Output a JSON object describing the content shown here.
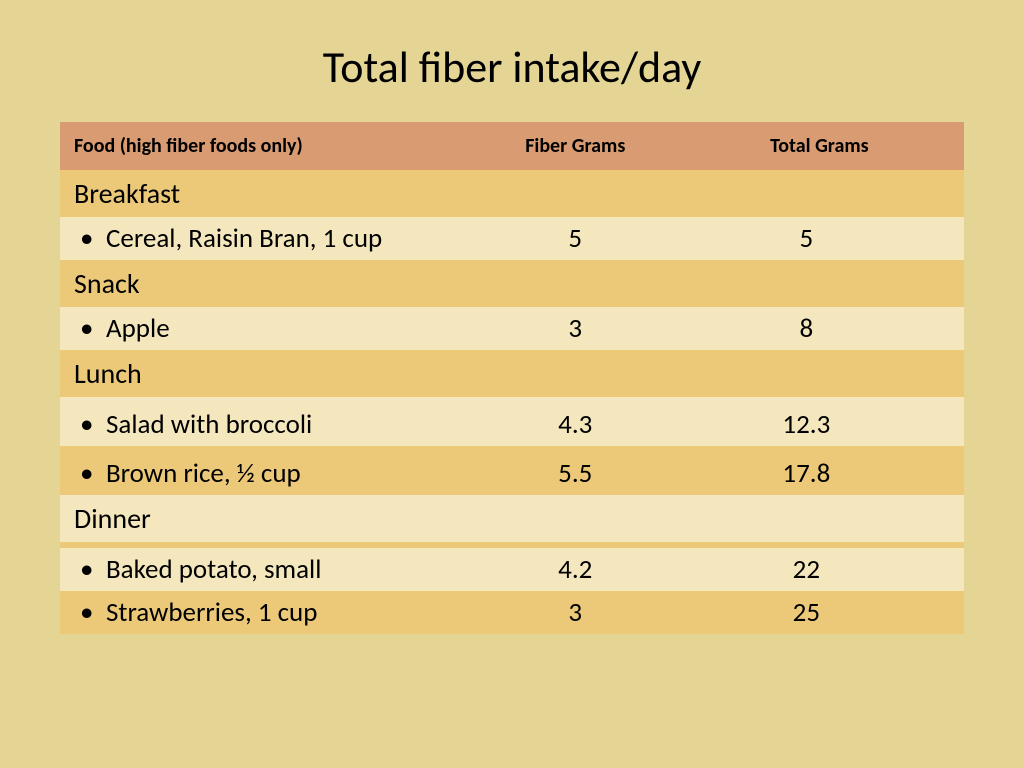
{
  "colors": {
    "slide_bg": "#e4d594",
    "header_bg": "#d89b72",
    "band_dark": "#ebc978",
    "band_light": "#f4e7be",
    "text": "#000000"
  },
  "title": "Total fiber intake/day",
  "columns": {
    "food": "Food (high fiber foods only)",
    "fiber": "Fiber Grams",
    "total": "Total Grams"
  },
  "rows": [
    {
      "type": "section",
      "label": "Breakfast",
      "band": "dark"
    },
    {
      "type": "item",
      "food": "Cereal, Raisin Bran, 1 cup",
      "fiber": "5",
      "total": "5",
      "band": "light"
    },
    {
      "type": "section",
      "label": "Snack",
      "band": "dark"
    },
    {
      "type": "item",
      "food": "Apple",
      "fiber": "3",
      "total": "8",
      "band": "light"
    },
    {
      "type": "section",
      "label": "Lunch",
      "band": "dark"
    },
    {
      "type": "gap",
      "band": "light"
    },
    {
      "type": "item",
      "food": "Salad with broccoli",
      "fiber": "4.3",
      "total": "12.3",
      "band": "light"
    },
    {
      "type": "gap",
      "band": "dark"
    },
    {
      "type": "item",
      "food": "Brown rice, ½ cup",
      "fiber": "5.5",
      "total": "17.8",
      "band": "dark"
    },
    {
      "type": "section",
      "label": "Dinner",
      "band": "light"
    },
    {
      "type": "gap",
      "band": "dark"
    },
    {
      "type": "item",
      "food": "Baked potato, small",
      "fiber": "4.2",
      "total": "22",
      "band": "light"
    },
    {
      "type": "item",
      "food": "Strawberries, 1 cup",
      "fiber": "3",
      "total": "25",
      "band": "dark"
    }
  ]
}
